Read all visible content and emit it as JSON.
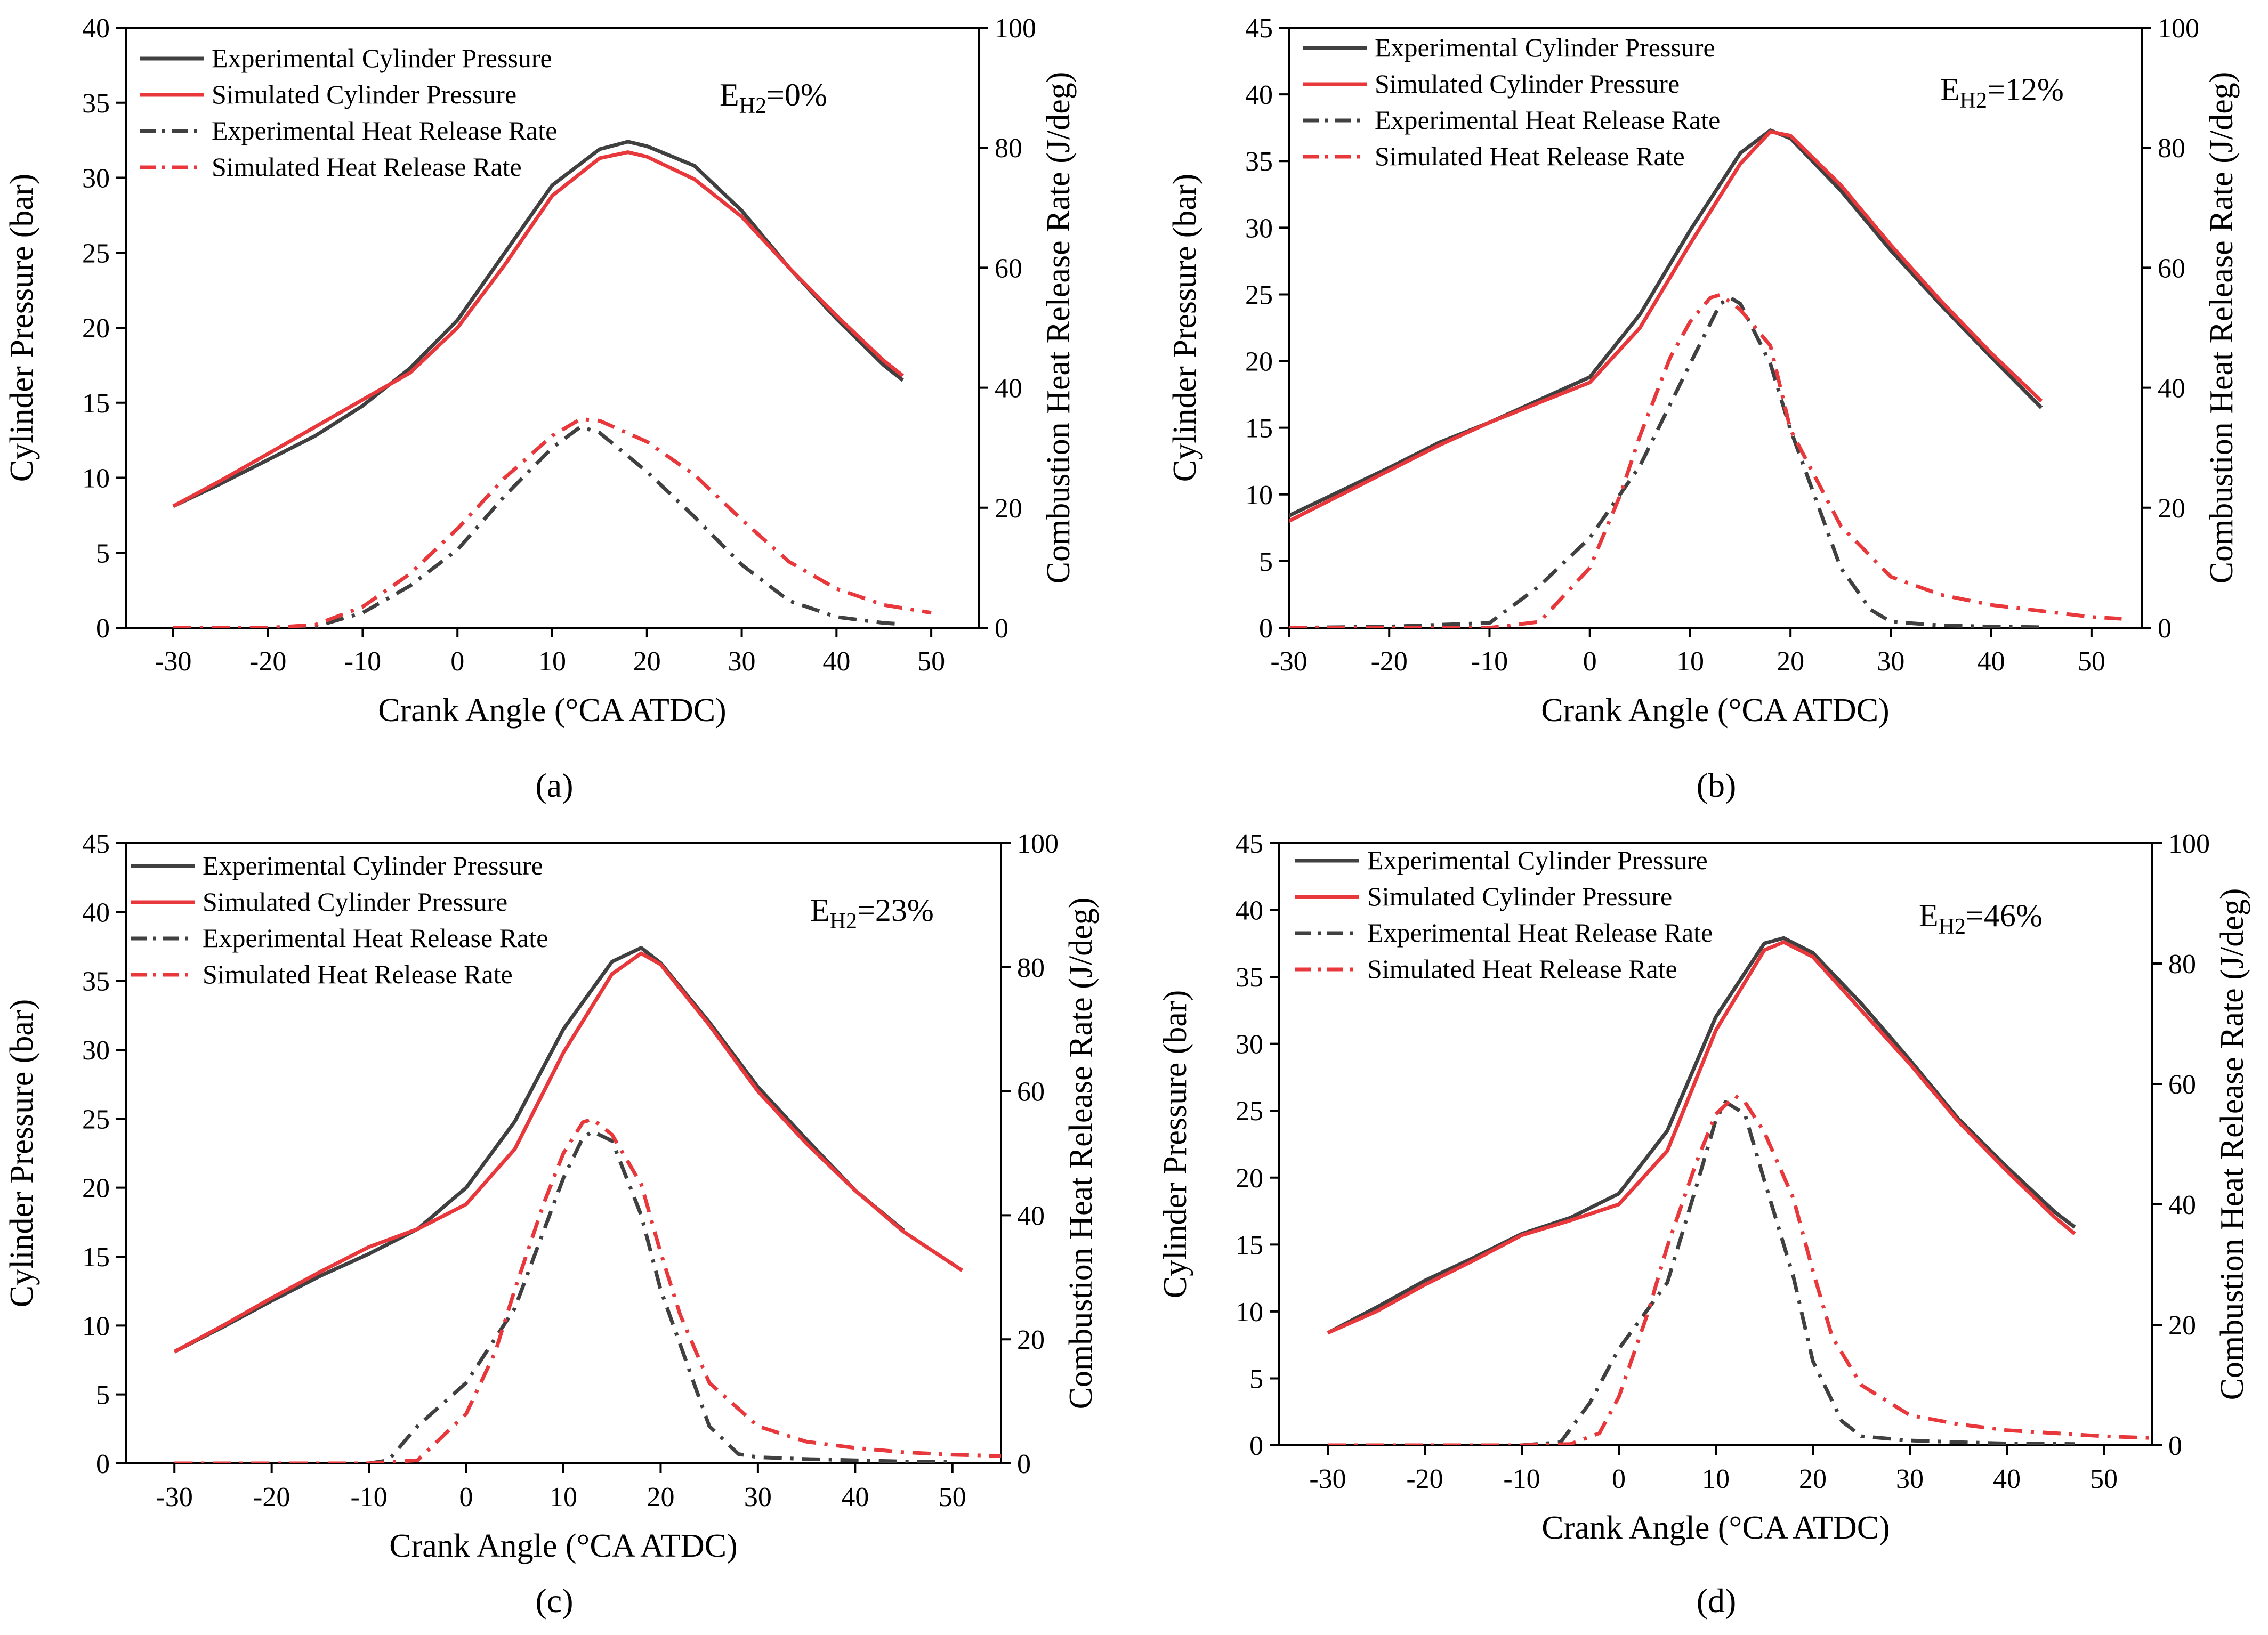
{
  "figure": {
    "panel_labels": [
      "(a)",
      "(b)",
      "(c)",
      "(d)"
    ],
    "colors": {
      "experimental": "#404040",
      "simulated": "#e8383b",
      "axis": "#000000",
      "background": "#ffffff"
    },
    "line_styles": {
      "pressure": "solid",
      "heat_release": "dash-dot"
    }
  },
  "chart_data": [
    {
      "type": "line",
      "panel": "(a)",
      "annotation": {
        "main": "E",
        "sub": "H2",
        "tail": "=0%"
      },
      "xlabel": "Crank Angle (°CA ATDC)",
      "ylabel": "Cylinder Pressure (bar)",
      "y2label": "Combustion Heat Release Rate (J/deg)",
      "xlim": [
        -35,
        55
      ],
      "ylim": [
        0,
        40
      ],
      "y2lim": [
        0,
        100
      ],
      "xticks": [
        -30,
        -20,
        -10,
        0,
        10,
        20,
        30,
        40,
        50
      ],
      "yticks": [
        0,
        5,
        10,
        15,
        20,
        25,
        30,
        35,
        40
      ],
      "y2ticks": [
        0,
        20,
        40,
        60,
        80,
        100
      ],
      "legend": {
        "position": "top-left",
        "entries": [
          "Experimental Cylinder Pressure",
          "Simulated Cylinder Pressure",
          "Experimental Heat Release Rate",
          "Simulated Heat Release Rate"
        ]
      },
      "series": [
        {
          "name": "Experimental Cylinder Pressure",
          "axis": "left",
          "style": "solid",
          "color": "#404040",
          "x": [
            -30,
            -25,
            -20,
            -15,
            -10,
            -5,
            0,
            5,
            10,
            15,
            18,
            20,
            25,
            30,
            35,
            40,
            45,
            47
          ],
          "y": [
            8.1,
            9.6,
            11.2,
            12.8,
            14.8,
            17.3,
            20.5,
            25.0,
            29.5,
            31.9,
            32.4,
            32.1,
            30.8,
            27.8,
            24.0,
            20.6,
            17.5,
            16.5
          ]
        },
        {
          "name": "Simulated Cylinder Pressure",
          "axis": "left",
          "style": "solid",
          "color": "#e8383b",
          "x": [
            -30,
            -25,
            -20,
            -15,
            -10,
            -5,
            0,
            5,
            10,
            15,
            18,
            20,
            25,
            30,
            35,
            40,
            45,
            47
          ],
          "y": [
            8.1,
            9.8,
            11.6,
            13.4,
            15.2,
            17.0,
            20.0,
            24.2,
            28.8,
            31.3,
            31.7,
            31.4,
            29.9,
            27.4,
            24.0,
            20.8,
            17.8,
            16.8
          ]
        },
        {
          "name": "Experimental Heat Release Rate",
          "axis": "right",
          "style": "dashdot",
          "color": "#404040",
          "x": [
            -30,
            -20,
            -15,
            -10,
            -5,
            0,
            5,
            10,
            13,
            15,
            20,
            25,
            30,
            35,
            40,
            45,
            47
          ],
          "y": [
            0,
            0,
            0.2,
            2.5,
            7.0,
            13.0,
            22.0,
            30.0,
            33.5,
            32.5,
            26.0,
            18.5,
            10.5,
            4.5,
            1.8,
            0.8,
            0.6
          ]
        },
        {
          "name": "Simulated Heat Release Rate",
          "axis": "right",
          "style": "dashdot",
          "color": "#e8383b",
          "x": [
            -30,
            -20,
            -15,
            -10,
            -5,
            0,
            5,
            10,
            13,
            15,
            20,
            25,
            30,
            35,
            40,
            45,
            50
          ],
          "y": [
            0,
            0,
            0.5,
            3.5,
            9.0,
            16.5,
            25.0,
            32.0,
            34.8,
            34.5,
            31.0,
            25.5,
            18.0,
            11.0,
            6.5,
            3.8,
            2.5
          ]
        }
      ]
    },
    {
      "type": "line",
      "panel": "(b)",
      "annotation": {
        "main": "E",
        "sub": "H2",
        "tail": "=12%"
      },
      "xlabel": "Crank Angle (°CA ATDC)",
      "ylabel": "Cylinder Pressure (bar)",
      "y2label": "Combustion Heat Release Rate (J/deg)",
      "xlim": [
        -30,
        55
      ],
      "ylim": [
        0,
        45
      ],
      "y2lim": [
        0,
        100
      ],
      "xticks": [
        -30,
        -20,
        -10,
        0,
        10,
        20,
        30,
        40,
        50
      ],
      "yticks": [
        0,
        5,
        10,
        15,
        20,
        25,
        30,
        35,
        40,
        45
      ],
      "y2ticks": [
        0,
        20,
        40,
        60,
        80,
        100
      ],
      "legend": {
        "position": "top-left",
        "entries": [
          "Experimental Cylinder Pressure",
          "Simulated Cylinder Pressure",
          "Experimental Heat Release Rate",
          "Simulated Heat Release Rate"
        ]
      },
      "series": [
        {
          "name": "Experimental Cylinder Pressure",
          "axis": "left",
          "style": "solid",
          "color": "#404040",
          "x": [
            -30,
            -25,
            -20,
            -15,
            -10,
            -5,
            0,
            5,
            10,
            15,
            18,
            20,
            25,
            30,
            35,
            40,
            45
          ],
          "y": [
            8.4,
            10.2,
            12.0,
            13.9,
            15.4,
            17.1,
            18.8,
            23.5,
            29.8,
            35.6,
            37.3,
            36.7,
            32.8,
            28.3,
            24.2,
            20.3,
            16.5
          ]
        },
        {
          "name": "Simulated Cylinder Pressure",
          "axis": "left",
          "style": "solid",
          "color": "#e8383b",
          "x": [
            -30,
            -25,
            -20,
            -15,
            -10,
            -5,
            0,
            5,
            10,
            15,
            18,
            20,
            25,
            30,
            35,
            40,
            45
          ],
          "y": [
            8.0,
            9.9,
            11.8,
            13.7,
            15.4,
            16.9,
            18.4,
            22.5,
            28.8,
            34.8,
            37.2,
            36.9,
            33.2,
            28.7,
            24.5,
            20.6,
            17.0
          ]
        },
        {
          "name": "Experimental Heat Release Rate",
          "axis": "right",
          "style": "dashdot",
          "color": "#404040",
          "x": [
            -30,
            -20,
            -10,
            -5,
            0,
            5,
            10,
            13,
            14,
            15,
            18,
            20,
            25,
            28,
            30,
            35,
            40,
            45
          ],
          "y": [
            0,
            0.2,
            0.8,
            7.0,
            15.0,
            27.0,
            44.0,
            54.0,
            55.0,
            54.0,
            44.0,
            33.0,
            10.0,
            3.0,
            1.0,
            0.4,
            0.2,
            0.1
          ]
        },
        {
          "name": "Simulated Heat Release Rate",
          "axis": "right",
          "style": "dashdot",
          "color": "#e8383b",
          "x": [
            -30,
            -10,
            -5,
            0,
            3,
            5,
            8,
            10,
            12,
            13,
            15,
            18,
            20,
            25,
            30,
            35,
            40,
            45,
            50,
            53
          ],
          "y": [
            0,
            0,
            1.0,
            10.0,
            22.0,
            32.0,
            45.0,
            51.0,
            55.0,
            55.5,
            53.0,
            47.0,
            33.0,
            17.0,
            8.5,
            5.5,
            3.8,
            2.8,
            1.8,
            1.5
          ]
        }
      ]
    },
    {
      "type": "line",
      "panel": "(c)",
      "annotation": {
        "main": "E",
        "sub": "H2",
        "tail": "=23%"
      },
      "xlabel": "Crank Angle (°CA ATDC)",
      "ylabel": "Cylinder Pressure (bar)",
      "y2label": "Combustion Heat Release Rate (J/deg)",
      "xlim": [
        -35,
        55
      ],
      "ylim": [
        0,
        45
      ],
      "y2lim": [
        0,
        100
      ],
      "xticks": [
        -30,
        -20,
        -10,
        0,
        10,
        20,
        30,
        40,
        50
      ],
      "yticks": [
        0,
        5,
        10,
        15,
        20,
        25,
        30,
        35,
        40,
        45
      ],
      "y2ticks": [
        0,
        20,
        40,
        60,
        80,
        100
      ],
      "legend": {
        "position": "top-left",
        "entries": [
          "Experimental Cylinder Pressure",
          "Simulated Cylinder Pressure",
          "Experimental Heat Release Rate",
          "Simulated Heat Release Rate"
        ]
      },
      "series": [
        {
          "name": "Experimental Cylinder Pressure",
          "axis": "left",
          "style": "solid",
          "color": "#404040",
          "x": [
            -30,
            -25,
            -20,
            -15,
            -10,
            -5,
            0,
            5,
            10,
            15,
            18,
            20,
            25,
            30,
            35,
            40,
            45
          ],
          "y": [
            8.1,
            9.9,
            11.8,
            13.6,
            15.2,
            17.0,
            20.0,
            24.8,
            31.5,
            36.4,
            37.4,
            36.3,
            32.0,
            27.3,
            23.5,
            19.8,
            16.9
          ]
        },
        {
          "name": "Simulated Cylinder Pressure",
          "axis": "left",
          "style": "solid",
          "color": "#e8383b",
          "x": [
            -30,
            -25,
            -20,
            -15,
            -10,
            -5,
            0,
            5,
            10,
            15,
            18,
            20,
            25,
            30,
            35,
            40,
            45,
            51
          ],
          "y": [
            8.1,
            10.0,
            12.0,
            13.9,
            15.7,
            17.0,
            18.8,
            22.8,
            29.8,
            35.5,
            37.0,
            36.2,
            31.8,
            27.0,
            23.2,
            19.8,
            16.8,
            14.0
          ]
        },
        {
          "name": "Experimental Heat Release Rate",
          "axis": "right",
          "style": "dashdot",
          "color": "#404040",
          "x": [
            -30,
            -10,
            -8,
            -5,
            0,
            5,
            10,
            12,
            13,
            15,
            18,
            20,
            25,
            28,
            30,
            35,
            40,
            45,
            50
          ],
          "y": [
            0,
            0,
            0.5,
            6.0,
            13.0,
            25.0,
            46.0,
            52.5,
            53.5,
            52.0,
            40.0,
            28.0,
            6.0,
            1.5,
            1.0,
            0.7,
            0.5,
            0.3,
            0.2
          ]
        },
        {
          "name": "Simulated Heat Release Rate",
          "axis": "right",
          "style": "dashdot",
          "color": "#e8383b",
          "x": [
            -30,
            -10,
            -5,
            0,
            3,
            5,
            8,
            10,
            12,
            13,
            15,
            18,
            20,
            22,
            25,
            30,
            35,
            40,
            45,
            50,
            55
          ],
          "y": [
            0,
            0,
            0.5,
            8.0,
            18.0,
            28.0,
            42.0,
            50.0,
            55.0,
            55.5,
            53.0,
            45.0,
            34.0,
            24.0,
            13.0,
            6.0,
            3.5,
            2.5,
            1.8,
            1.4,
            1.2
          ]
        }
      ]
    },
    {
      "type": "line",
      "panel": "(d)",
      "annotation": {
        "main": "E",
        "sub": "H2",
        "tail": "=46%"
      },
      "xlabel": "Crank Angle (°CA ATDC)",
      "ylabel": "Cylinder Pressure (bar)",
      "y2label": "Combustion Heat Release Rate (J/deg)",
      "xlim": [
        -35,
        55
      ],
      "ylim": [
        0,
        45
      ],
      "y2lim": [
        0,
        100
      ],
      "xticks": [
        -30,
        -20,
        -10,
        0,
        10,
        20,
        30,
        40,
        50
      ],
      "yticks": [
        0,
        5,
        10,
        15,
        20,
        25,
        30,
        35,
        40,
        45
      ],
      "y2ticks": [
        0,
        20,
        40,
        60,
        80,
        100
      ],
      "legend": {
        "position": "top-left",
        "entries": [
          "Experimental Cylinder Pressure",
          "Simulated Cylinder Pressure",
          "Experimental Heat Release Rate",
          "Simulated Heat Release Rate"
        ]
      },
      "series": [
        {
          "name": "Experimental Cylinder Pressure",
          "axis": "left",
          "style": "solid",
          "color": "#404040",
          "x": [
            -30,
            -25,
            -20,
            -15,
            -10,
            -5,
            0,
            5,
            10,
            15,
            17,
            20,
            25,
            30,
            35,
            40,
            45,
            47
          ],
          "y": [
            8.4,
            10.3,
            12.3,
            14.0,
            15.8,
            17.0,
            18.8,
            23.5,
            32.0,
            37.5,
            37.9,
            36.8,
            33.0,
            28.8,
            24.4,
            20.8,
            17.4,
            16.3
          ]
        },
        {
          "name": "Simulated Cylinder Pressure",
          "axis": "left",
          "style": "solid",
          "color": "#e8383b",
          "x": [
            -30,
            -25,
            -20,
            -15,
            -10,
            -5,
            0,
            5,
            10,
            15,
            17,
            20,
            25,
            30,
            35,
            40,
            45,
            47
          ],
          "y": [
            8.4,
            10.0,
            12.0,
            13.8,
            15.7,
            16.8,
            18.0,
            22.0,
            31.0,
            37.0,
            37.6,
            36.5,
            32.5,
            28.5,
            24.2,
            20.5,
            17.0,
            15.8
          ]
        },
        {
          "name": "Experimental Heat Release Rate",
          "axis": "right",
          "style": "dashdot",
          "color": "#404040",
          "x": [
            -30,
            -10,
            -6,
            -3,
            0,
            5,
            8,
            10,
            11,
            13,
            15,
            18,
            20,
            23,
            25,
            30,
            35,
            40,
            47
          ],
          "y": [
            0,
            0,
            0.5,
            7.0,
            16.0,
            27.0,
            43.0,
            54.0,
            57.0,
            55.0,
            44.0,
            28.0,
            14.0,
            4.0,
            1.5,
            0.8,
            0.5,
            0.3,
            0.2
          ]
        },
        {
          "name": "Simulated Heat Release Rate",
          "axis": "right",
          "style": "dashdot",
          "color": "#e8383b",
          "x": [
            -30,
            -10,
            -5,
            -2,
            0,
            3,
            5,
            8,
            10,
            12,
            13,
            15,
            18,
            20,
            22,
            25,
            30,
            35,
            40,
            45,
            50,
            55
          ],
          "y": [
            0,
            0,
            0.2,
            2.0,
            8.0,
            22.0,
            33.0,
            47.0,
            55.0,
            58.0,
            57.0,
            52.0,
            41.0,
            29.0,
            18.0,
            10.0,
            5.0,
            3.5,
            2.5,
            2.0,
            1.5,
            1.2
          ]
        }
      ]
    }
  ]
}
